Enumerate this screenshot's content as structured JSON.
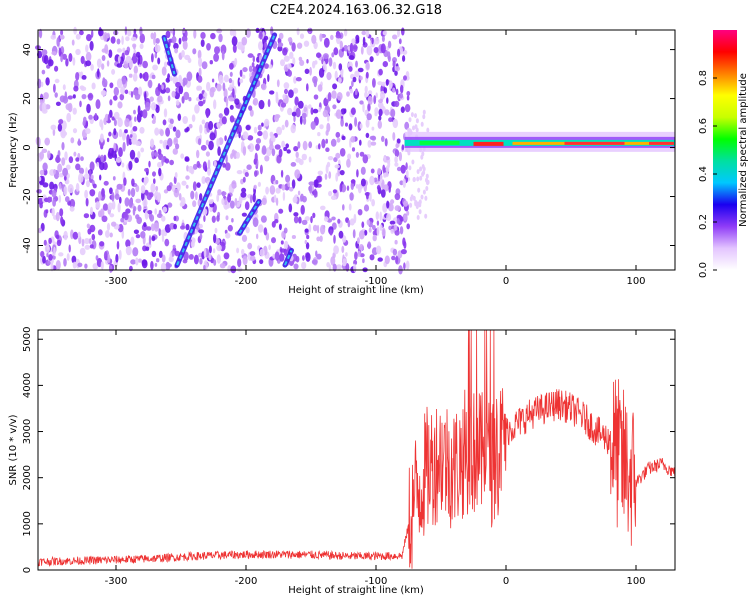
{
  "title": "C2E4.2024.163.06.32.G18",
  "chart_data": [
    {
      "type": "heatmap",
      "xlabel": "Height of straight line (km)",
      "ylabel": "Frequency (Hz)",
      "xlim": [
        -360,
        130
      ],
      "ylim": [
        -50,
        48
      ],
      "xticks": [
        -300,
        -200,
        -100,
        0,
        100
      ],
      "yticks": [
        -40,
        -20,
        0,
        20,
        40
      ],
      "grid": false,
      "colorbar": {
        "label": "Normalized spectral amplitude",
        "ticks": [
          0.0,
          0.2,
          0.4,
          0.6,
          0.8
        ],
        "range": [
          0.0,
          1.0
        ],
        "colors": [
          "#ffffff",
          "#e3c4ff",
          "#8f3cf7",
          "#1a00f0",
          "#00c8ff",
          "#00e0a0",
          "#00ff00",
          "#c8ff00",
          "#ffff00",
          "#ff8000",
          "#ff0000",
          "#ff0080"
        ]
      },
      "noise_region_x": [
        -360,
        -75
      ],
      "diagonal_tracks": [
        {
          "x": [
            -263,
            -255
          ],
          "y": [
            45,
            30
          ]
        },
        {
          "x": [
            -253,
            -178
          ],
          "y": [
            -48,
            46
          ]
        },
        {
          "x": [
            -205,
            -190
          ],
          "y": [
            -35,
            -22
          ]
        },
        {
          "x": [
            -170,
            -165
          ],
          "y": [
            -48,
            -42
          ]
        }
      ],
      "horizontal_band": {
        "x": [
          -78,
          130
        ],
        "y": 1.5
      }
    },
    {
      "type": "line",
      "xlabel": "Height of straight line (km)",
      "ylabel": "SNR (10 * v/v)",
      "xlim": [
        -360,
        130
      ],
      "ylim": [
        0,
        5200
      ],
      "xticks": [
        -300,
        -200,
        -100,
        0,
        100
      ],
      "yticks": [
        0,
        1000,
        2000,
        3000,
        4000,
        5000
      ],
      "grid": false,
      "series": [
        {
          "color": "#ee3333",
          "x": [
            -360,
            -330,
            -300,
            -270,
            -240,
            -210,
            -180,
            -150,
            -120,
            -100,
            -80,
            -70,
            -60,
            -50,
            -40,
            -30,
            -20,
            -10,
            0,
            10,
            20,
            30,
            40,
            50,
            60,
            70,
            80,
            90,
            100,
            110,
            120,
            130
          ],
          "y": [
            180,
            200,
            220,
            250,
            300,
            330,
            340,
            330,
            300,
            300,
            310,
            1600,
            2200,
            2500,
            2200,
            2600,
            2500,
            2300,
            3000,
            3200,
            3400,
            3500,
            3600,
            3500,
            3300,
            3000,
            2800,
            2300,
            1900,
            2200,
            2300,
            2100
          ]
        }
      ]
    }
  ]
}
